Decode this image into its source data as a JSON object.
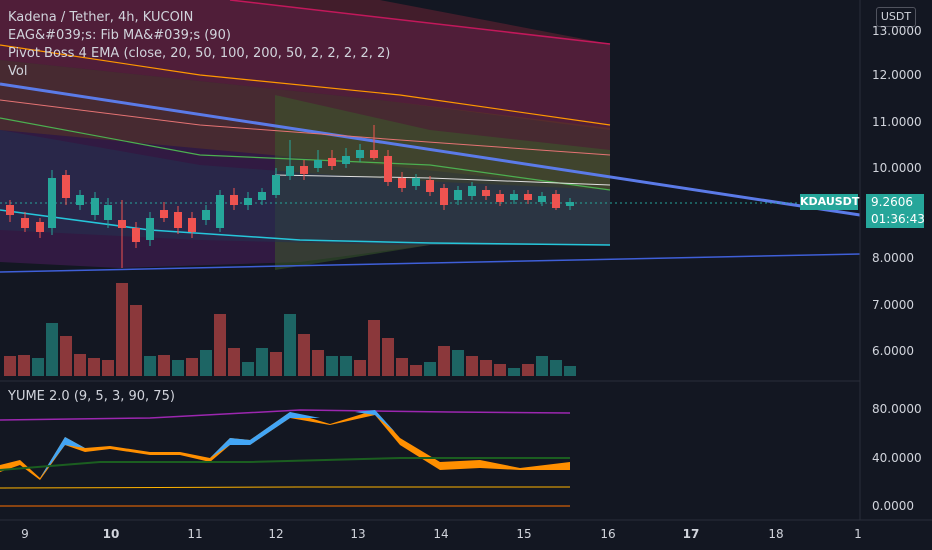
{
  "legend": {
    "symbol": "Kadena / Tether, 4h, KUCOIN",
    "ind1": "EAG&#039;s: Fib MA&#039;s (90)",
    "ind2": "Pivot Boss 4 EMA (close, 20, 50, 100, 200, 50, 2, 2, 2, 2, 2)",
    "ind3": "Vol"
  },
  "currency": "USDT",
  "ticker": "KDAUSDT",
  "last_price": "9.2606",
  "countdown": "01:36:43",
  "price_axis": [
    "13.0000",
    "12.0000",
    "11.0000",
    "10.0000",
    "8.0000",
    "7.0000",
    "6.0000"
  ],
  "oscillator": {
    "label": "YUME 2.0 (9, 5, 3, 90, 75)",
    "axis": [
      "80.0000",
      "40.0000",
      "0.0000"
    ]
  },
  "time_axis": [
    {
      "text": "9",
      "bold": false
    },
    {
      "text": "10",
      "bold": true
    },
    {
      "text": "11",
      "bold": false
    },
    {
      "text": "12",
      "bold": false
    },
    {
      "text": "13",
      "bold": false
    },
    {
      "text": "14",
      "bold": false
    },
    {
      "text": "15",
      "bold": false
    },
    {
      "text": "16",
      "bold": false
    },
    {
      "text": "17",
      "bold": true
    },
    {
      "text": "18",
      "bold": false
    },
    {
      "text": "1",
      "bold": false
    }
  ],
  "colors": {
    "up": "#26a69a",
    "down": "#ef5350",
    "trendline": "#5b7be8",
    "background": "#131722"
  }
}
